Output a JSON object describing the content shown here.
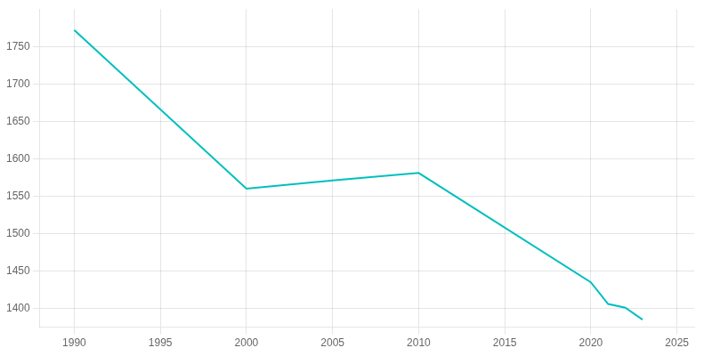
{
  "chart_data": {
    "type": "line",
    "x": [
      1990,
      2000,
      2005,
      2010,
      2020,
      2021,
      2022,
      2023
    ],
    "values": [
      1772,
      1560,
      1571,
      1581,
      1435,
      1406,
      1401,
      1385
    ],
    "color": "#00BFBF",
    "xlim": [
      1988,
      2026
    ],
    "ylim": [
      1375,
      1800
    ],
    "xticks": [
      1990,
      1995,
      2000,
      2005,
      2010,
      2015,
      2020,
      2025
    ],
    "yticks": [
      1400,
      1450,
      1500,
      1550,
      1600,
      1650,
      1700,
      1750
    ],
    "grid": true
  }
}
